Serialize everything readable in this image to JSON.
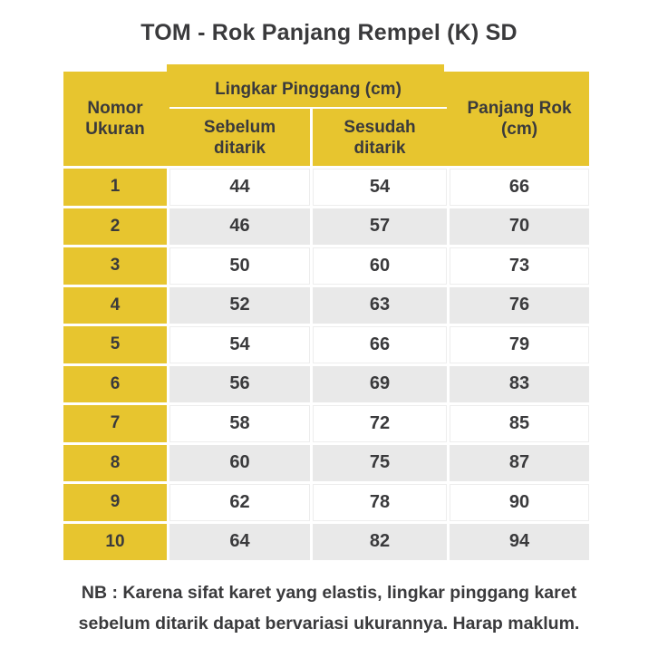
{
  "title": "TOM - Rok Panjang Rempel (K) SD",
  "colors": {
    "header_yellow": "#e7c52f",
    "row_gray": "#e9e9e9",
    "row_white": "#ffffff",
    "text": "#3a3a3c"
  },
  "table": {
    "header": {
      "nomor_lines": [
        "Nomor",
        "Ukuran"
      ],
      "lingkar_group": "Lingkar Pinggang (cm)",
      "sebelum_lines": [
        "Sebelum",
        "ditarik"
      ],
      "sesudah_lines": [
        "Sesudah",
        "ditarik"
      ],
      "panjang_lines": [
        "Panjang Rok",
        "(cm)"
      ]
    },
    "rows": [
      {
        "nomor": "1",
        "sebelum": "44",
        "sesudah": "54",
        "panjang": "66"
      },
      {
        "nomor": "2",
        "sebelum": "46",
        "sesudah": "57",
        "panjang": "70"
      },
      {
        "nomor": "3",
        "sebelum": "50",
        "sesudah": "60",
        "panjang": "73"
      },
      {
        "nomor": "4",
        "sebelum": "52",
        "sesudah": "63",
        "panjang": "76"
      },
      {
        "nomor": "5",
        "sebelum": "54",
        "sesudah": "66",
        "panjang": "79"
      },
      {
        "nomor": "6",
        "sebelum": "56",
        "sesudah": "69",
        "panjang": "83"
      },
      {
        "nomor": "7",
        "sebelum": "58",
        "sesudah": "72",
        "panjang": "85"
      },
      {
        "nomor": "8",
        "sebelum": "60",
        "sesudah": "75",
        "panjang": "87"
      },
      {
        "nomor": "9",
        "sebelum": "62",
        "sesudah": "78",
        "panjang": "90"
      },
      {
        "nomor": "10",
        "sebelum": "64",
        "sesudah": "82",
        "panjang": "94"
      }
    ]
  },
  "footer": {
    "lines": [
      "NB : Karena sifat karet yang elastis, lingkar pinggang karet",
      "sebelum ditarik dapat bervariasi ukurannya. Harap maklum."
    ]
  }
}
